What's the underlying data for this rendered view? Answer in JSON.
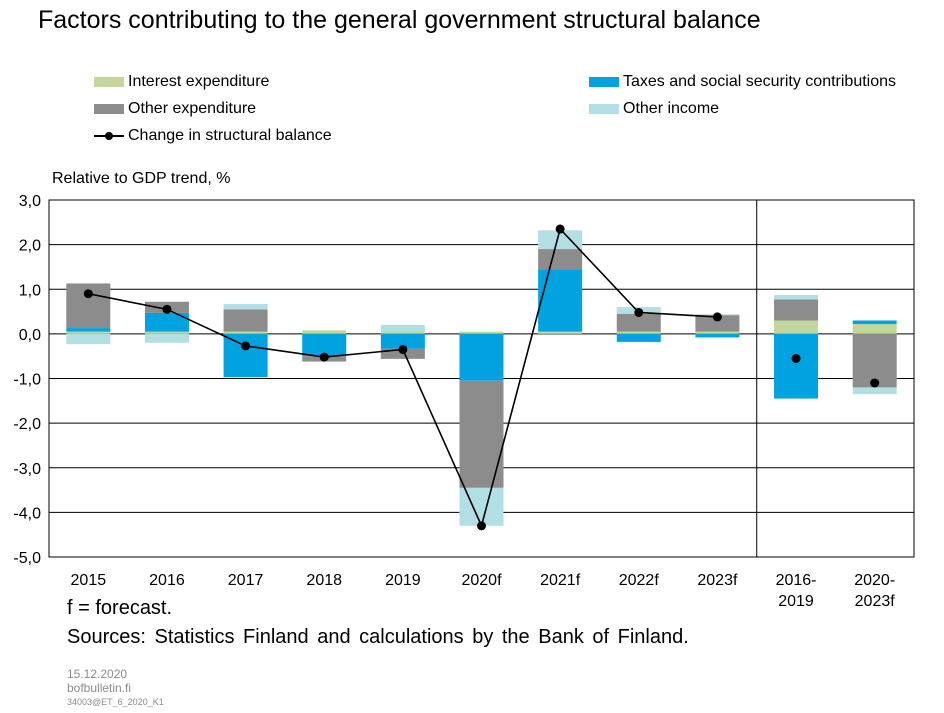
{
  "chart_data": {
    "type": "bar",
    "stacked": true,
    "title": "Factors contributing to the general government structural balance",
    "ylabel": "Relative to GDP trend, %",
    "ylim": [
      -5.0,
      3.0
    ],
    "yticks": [
      "3,0",
      "2,0",
      "1,0",
      "0,0",
      "-1,0",
      "-2,0",
      "-3,0",
      "-4,0",
      "-5,0"
    ],
    "grid": true,
    "legend_position": "top",
    "categories": [
      [
        "2015"
      ],
      [
        "2016"
      ],
      [
        "2017"
      ],
      [
        "2018"
      ],
      [
        "2019"
      ],
      [
        "2020f"
      ],
      [
        "2021f"
      ],
      [
        "2022f"
      ],
      [
        "2023f"
      ],
      [
        "2016-",
        "2019"
      ],
      [
        "2020-",
        "2023f"
      ]
    ],
    "series": [
      {
        "name": "Interest expenditure",
        "color": "#c3d69b",
        "values": [
          0.05,
          0.05,
          0.05,
          0.08,
          0.05,
          0.05,
          0.05,
          0.05,
          0.05,
          0.3,
          0.22
        ]
      },
      {
        "name": "Taxes and social security contributions",
        "color": "#00a3e0",
        "values": [
          0.08,
          0.42,
          -0.97,
          -0.5,
          -0.33,
          -1.05,
          1.4,
          -0.18,
          -0.08,
          -1.45,
          0.08
        ]
      },
      {
        "name": "Other expenditure",
        "color": "#8c8c8c",
        "values": [
          1.0,
          0.25,
          0.5,
          -0.12,
          -0.23,
          -2.4,
          0.45,
          0.4,
          0.37,
          0.47,
          -1.2
        ]
      },
      {
        "name": "Other income",
        "color": "#b2dfe3",
        "values": [
          -0.23,
          -0.2,
          0.12,
          0.0,
          0.15,
          -0.85,
          0.42,
          0.15,
          0.02,
          0.1,
          -0.15
        ]
      }
    ],
    "line": {
      "name": "Change in structural balance",
      "color": "#000000",
      "values": [
        0.9,
        0.55,
        -0.27,
        -0.52,
        -0.35,
        -4.3,
        2.35,
        0.48,
        0.38,
        -0.55,
        -1.1
      ],
      "connected_points": 9
    },
    "separator_after_category_index": 8
  },
  "legend": {
    "interest": "Interest expenditure",
    "taxes": "Taxes and social security contributions",
    "other_exp": "Other expenditure",
    "other_inc": "Other income",
    "line": "Change in structural balance"
  },
  "footnote": "f = forecast.",
  "sources": "Sources: Statistics Finland and calculations by the Bank of Finland.",
  "stamp": {
    "date": "15.12.2020",
    "site": "bofbulletin.fi",
    "code": "34003@ET_6_2020_K1"
  }
}
